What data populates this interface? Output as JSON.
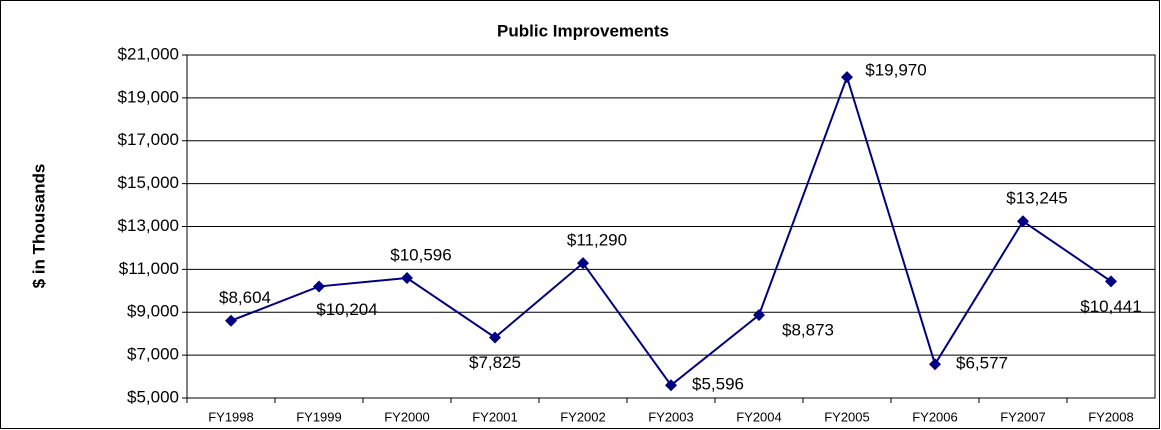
{
  "chart_data": {
    "type": "line",
    "title": "Public Improvements",
    "y_label": "$ in Thousands",
    "categories": [
      "FY1998",
      "FY1999",
      "FY2000",
      "FY2001",
      "FY2002",
      "FY2003",
      "FY2004",
      "FY2005",
      "FY2006",
      "FY2007",
      "FY2008"
    ],
    "series": [
      {
        "name": "Public Improvements",
        "color": "#000080",
        "values": [
          8604,
          10204,
          10596,
          7825,
          11290,
          5596,
          8873,
          19970,
          6577,
          13245,
          10441
        ],
        "value_labels": [
          "$8,604",
          "$10,204",
          "$10,596",
          "$7,825",
          "$11,290",
          "$5,596",
          "$8,873",
          "$19,970",
          "$6,577",
          "$13,245",
          "$10,441"
        ]
      }
    ],
    "ylim": [
      5000,
      21000
    ],
    "yticks": [
      {
        "value": 5000,
        "label": "$5,000"
      },
      {
        "value": 7000,
        "label": "$7,000"
      },
      {
        "value": 9000,
        "label": "$9,000"
      },
      {
        "value": 11000,
        "label": "$11,000"
      },
      {
        "value": 13000,
        "label": "$13,000"
      },
      {
        "value": 15000,
        "label": "$15,000"
      },
      {
        "value": 17000,
        "label": "$17,000"
      },
      {
        "value": 19000,
        "label": "$19,000"
      },
      {
        "value": 21000,
        "label": "$21,000"
      }
    ],
    "grid": true
  }
}
